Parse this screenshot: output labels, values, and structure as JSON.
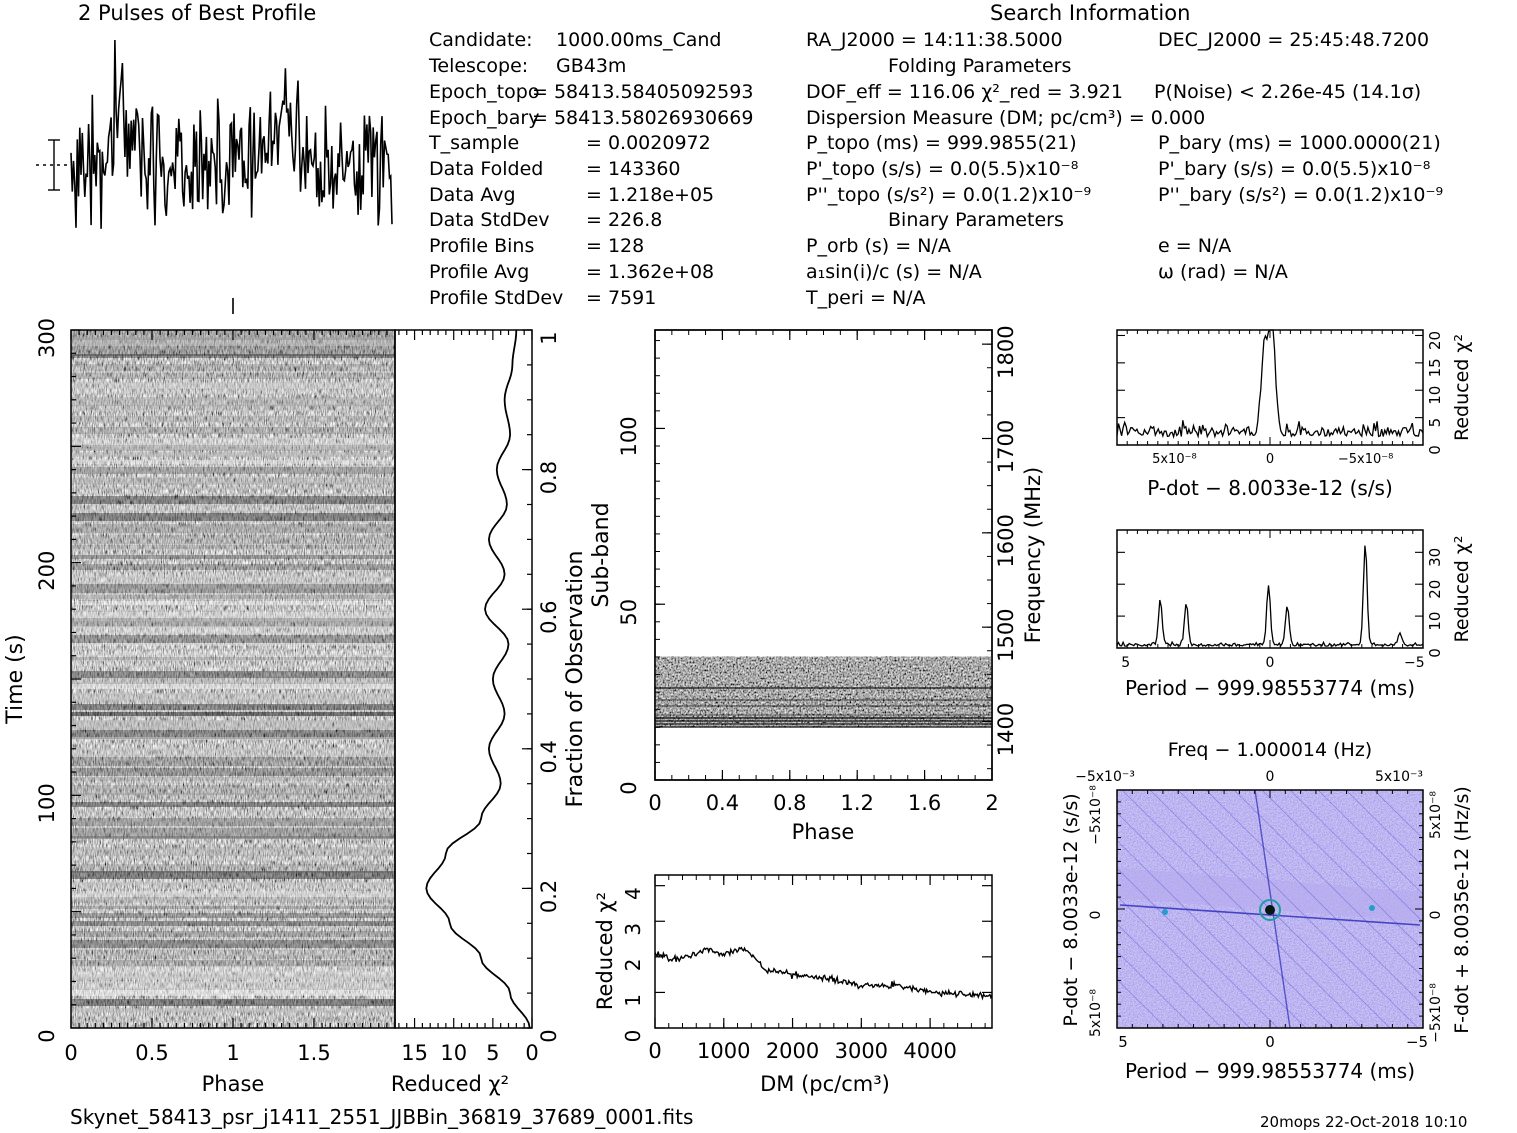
{
  "profile_title": "2 Pulses of Best Profile",
  "search_info_title": "Search Information",
  "candidate_info": [
    {
      "label": "Candidate:",
      "value": "1000.00ms_Cand"
    },
    {
      "label": "Telescope:",
      "value": "GB43m"
    },
    {
      "label": "Epoch_topo",
      "value": "= 58413.58405092593"
    },
    {
      "label": "Epoch_bary",
      "value": "= 58413.58026930669"
    },
    {
      "label": "T_sample",
      "value": "=   0.0020972"
    },
    {
      "label": "Data Folded",
      "value": "=   143360"
    },
    {
      "label": "Data Avg",
      "value": "=   1.218e+05"
    },
    {
      "label": "Data StdDev",
      "value": "=   226.8"
    },
    {
      "label": "Profile Bins",
      "value": "=   128"
    },
    {
      "label": "Profile Avg",
      "value": "=   1.362e+08"
    },
    {
      "label": "Profile StdDev",
      "value": "=   7591"
    }
  ],
  "search_params": {
    "ra": "RA_J2000 = 14:11:38.5000",
    "dec": "DEC_J2000 = 25:45:48.7200",
    "folding_title": "Folding Parameters",
    "dof_line": "DOF_eff = 116.06  χ²_red = 3.921",
    "pnoise": "P(Noise) < 2.26e-45  (14.1σ)",
    "dm_line": "Dispersion Measure (DM; pc/cm³) = 0.000",
    "p_topo": "P_topo (ms) =  999.9855(21)",
    "p_bary": "P_bary (ms) =  1000.0000(21)",
    "pd_topo": "P'_topo (s/s) = 0.0(5.5)x10⁻⁸",
    "pd_bary": "P'_bary (s/s) = 0.0(5.5)x10⁻⁸",
    "pdd_topo": "P''_topo (s/s²) = 0.0(1.2)x10⁻⁹",
    "pdd_bary": "P''_bary (s/s²) = 0.0(1.2)x10⁻⁹",
    "binary_title": "Binary Parameters",
    "porb": "P_orb (s) = N/A",
    "ecc": "e = N/A",
    "a1sini": "a₁sin(i)/c (s) = N/A",
    "omega": "ω (rad) = N/A",
    "tperi": "T_peri = N/A"
  },
  "chart_data": [
    {
      "type": "line",
      "name": "pulse-profile",
      "title": "2 Pulses of Best Profile",
      "x_range": [
        0,
        2
      ],
      "pulse_phases": [
        0.33,
        1.33
      ]
    },
    {
      "type": "heatmap",
      "name": "time-phase",
      "xlabel": "Phase",
      "ylabel": "Time (s)",
      "x_ticks": [
        "0",
        "0.5",
        "1",
        "1.5"
      ],
      "y_ticks": [
        "0",
        "100",
        "200",
        "300"
      ],
      "xlim": [
        0,
        2
      ],
      "ylim": [
        0,
        300
      ]
    },
    {
      "type": "line",
      "name": "fraction-chi2",
      "xlabel": "Reduced χ²",
      "ylabel_right": "Fraction of Observation",
      "x_ticks": [
        "15",
        "10",
        "5",
        "0"
      ],
      "y_ticks": [
        "0",
        "0.2",
        "0.4",
        "0.6",
        "0.8",
        "1"
      ],
      "y": [
        0,
        0.05,
        0.1,
        0.15,
        0.2,
        0.25,
        0.3,
        0.35,
        0.4,
        0.45,
        0.5,
        0.55,
        0.6,
        0.65,
        0.7,
        0.75,
        0.8,
        0.85,
        0.9,
        0.95,
        1.0
      ],
      "chi2": [
        0.3,
        2.8,
        6.5,
        10.5,
        13.5,
        11,
        6.5,
        4,
        5.5,
        3.5,
        5,
        3,
        6,
        3.5,
        5.5,
        3.2,
        4.5,
        2.8,
        3.5,
        2.5,
        2
      ]
    },
    {
      "type": "heatmap",
      "name": "subband-phase",
      "xlabel": "Phase",
      "ylabel": "Sub-band",
      "ylabel_right": "Frequency (MHz)",
      "x_ticks": [
        "0",
        "0.4",
        "0.8",
        "1.2",
        "1.6",
        "2"
      ],
      "y_ticks": [
        "0",
        "50",
        "100"
      ],
      "y2_ticks": [
        "1400",
        "1500",
        "1600",
        "1700",
        "1800"
      ],
      "xlim": [
        0,
        2
      ],
      "ylim": [
        0,
        128
      ],
      "filled_subbands": [
        15,
        35
      ]
    },
    {
      "type": "line",
      "name": "dm-chi2",
      "xlabel": "DM (pc/cm³)",
      "ylabel": "Reduced χ²",
      "x_ticks": [
        "0",
        "1000",
        "2000",
        "3000",
        "4000"
      ],
      "y_ticks": [
        "0",
        "1",
        "2",
        "3",
        "4"
      ],
      "xlim": [
        0,
        4900
      ],
      "ylim": [
        0,
        4.3
      ],
      "x": [
        0,
        250,
        500,
        750,
        1000,
        1250,
        1400,
        1600,
        2000,
        2500,
        3000,
        3500,
        4000,
        4500,
        4900
      ],
      "y": [
        2.1,
        1.95,
        2.0,
        2.25,
        2.05,
        2.2,
        2.1,
        1.65,
        1.5,
        1.4,
        1.2,
        1.2,
        1.0,
        0.95,
        0.9
      ]
    },
    {
      "type": "line",
      "name": "pdot-chi2",
      "xlabel": "P-dot − 8.0033e-12 (s/s)",
      "ylabel": "Reduced χ²",
      "x_ticks": [
        "5x10⁻⁸",
        "0",
        "−5x10⁻⁸"
      ],
      "y_ticks": [
        "0",
        "5",
        "10",
        "15",
        "20"
      ],
      "xlim": [
        8e-08,
        -8e-08
      ],
      "ylim": [
        0,
        21
      ],
      "peaks": [
        {
          "x": -1e-09,
          "y": 19
        },
        {
          "x": 3e-09,
          "y": 14
        }
      ]
    },
    {
      "type": "line",
      "name": "period-chi2",
      "xlabel": "Period − 999.98553774 (ms)",
      "ylabel": "Reduced χ²",
      "x_ticks": [
        "5",
        "0",
        "−5"
      ],
      "y_ticks": [
        "0",
        "10",
        "20",
        "30"
      ],
      "xlim": [
        5.3,
        -5.3
      ],
      "ylim": [
        0,
        37
      ],
      "peaks": [
        {
          "x": 3.8,
          "y": 14
        },
        {
          "x": 2.9,
          "y": 13
        },
        {
          "x": 0.05,
          "y": 19
        },
        {
          "x": -0.6,
          "y": 12
        },
        {
          "x": -3.3,
          "y": 32
        },
        {
          "x": -4.5,
          "y": 4
        }
      ]
    },
    {
      "type": "heatmap",
      "name": "period-pdot",
      "title": "Freq − 1.000014 (Hz)",
      "xlabel": "Period − 999.98553774 (ms)",
      "ylabel": "P-dot − 8.0033e-12 (s/s)",
      "ylabel_right": "F-dot + 8.0035e-12 (Hz/s)",
      "x_ticks": [
        "5",
        "0",
        "−5"
      ],
      "x2_ticks": [
        "−5x10⁻³",
        "0",
        "5x10⁻³"
      ],
      "y_ticks": [
        "5x10⁻⁸",
        "0",
        "−5x10⁻⁸"
      ],
      "y2_ticks": [
        "−5x10⁻⁸",
        "0",
        "5x10⁻⁸"
      ]
    }
  ],
  "footer_file": "Skynet_58413_psr_j1411_2551_JJBBin_36819_37689_0001.fits",
  "footer_stamp": "20mops 22-Oct-2018 10:10"
}
